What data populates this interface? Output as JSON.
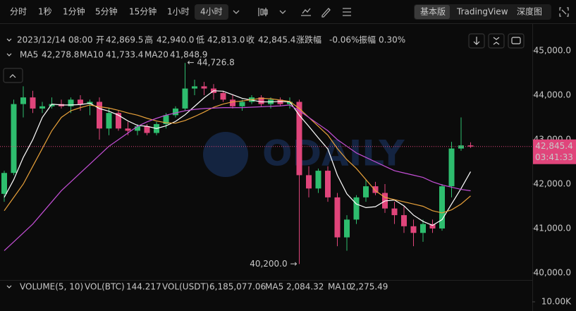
{
  "toolbar": {
    "intervals": [
      {
        "label": "分时"
      },
      {
        "label": "1秒"
      },
      {
        "label": "1分钟"
      },
      {
        "label": "5分钟"
      },
      {
        "label": "15分钟"
      },
      {
        "label": "1小时"
      },
      {
        "label": "4小时",
        "active": true
      }
    ],
    "views": [
      {
        "label": "基本版",
        "active": true
      },
      {
        "label": "TradingView"
      },
      {
        "label": "深度图"
      }
    ]
  },
  "info": {
    "datetime": "2023/12/14 08:00",
    "fields": [
      {
        "label": "开",
        "value": "42,869.5"
      },
      {
        "label": "高",
        "value": "42,940.0"
      },
      {
        "label": "低",
        "value": "42,813.0"
      },
      {
        "label": "收",
        "value": "42,845.4"
      },
      {
        "label": "涨跌幅",
        "value": "-0.06%"
      },
      {
        "label": "振幅",
        "value": "0.30%"
      }
    ]
  },
  "ma_legend": [
    {
      "name": "MA5",
      "value": "42,278.8"
    },
    {
      "name": "MA10",
      "value": "41,733.4"
    },
    {
      "name": "MA20",
      "value": "41,848.9"
    }
  ],
  "watermark": "ODAILY",
  "chart": {
    "type": "candlestick",
    "up_color": "#2ebd6e",
    "down_color": "#e0457b",
    "open": [
      41780,
      42250,
      43800,
      43950,
      43700,
      43750,
      43800,
      43750,
      43900,
      43800,
      43850,
      43250,
      43600,
      43250,
      43200,
      43300,
      43150,
      43350,
      43550,
      43700,
      44150,
      44200,
      44150,
      44050,
      43900,
      43750,
      43850,
      43950,
      43800,
      43900,
      43800,
      43850,
      42200,
      41900,
      42300,
      41700,
      40800,
      41200,
      41700,
      41950,
      41800,
      41450,
      41300,
      41050,
      40900,
      41100,
      41000,
      41950,
      42800,
      42869.5
    ],
    "high": [
      42300,
      43900,
      44200,
      44100,
      43850,
      43950,
      43900,
      43950,
      44000,
      43900,
      43950,
      43700,
      43650,
      43400,
      43350,
      43350,
      43400,
      43600,
      43750,
      44726.8,
      44350,
      44300,
      44250,
      44100,
      44000,
      43900,
      44000,
      44000,
      43950,
      43950,
      43950,
      43900,
      42400,
      42350,
      42400,
      41800,
      41300,
      41750,
      42100,
      42050,
      42000,
      41600,
      41500,
      41200,
      41200,
      41200,
      42000,
      42950,
      43500,
      42940
    ],
    "low": [
      41600,
      42200,
      43500,
      43600,
      43600,
      43700,
      43700,
      43600,
      43650,
      43550,
      43000,
      43100,
      43200,
      43100,
      43100,
      43100,
      43100,
      43250,
      43500,
      43650,
      44000,
      44000,
      43900,
      43850,
      43700,
      43650,
      43800,
      43750,
      43700,
      43750,
      43700,
      40200,
      41700,
      41800,
      41600,
      40600,
      40500,
      41100,
      41600,
      41750,
      41350,
      41100,
      40900,
      40600,
      40700,
      40900,
      40950,
      41700,
      42750,
      42813
    ],
    "close": [
      42250,
      43800,
      43950,
      43700,
      43750,
      43800,
      43750,
      43900,
      43800,
      43850,
      43250,
      43600,
      43250,
      43200,
      43300,
      43150,
      43350,
      43550,
      43700,
      44150,
      44200,
      44150,
      44050,
      43900,
      43750,
      43850,
      43950,
      43800,
      43900,
      43800,
      43850,
      42200,
      41900,
      42300,
      41700,
      40800,
      41200,
      41700,
      41950,
      41800,
      41450,
      41300,
      41050,
      40900,
      41100,
      41000,
      41950,
      42800,
      42870,
      42845.4
    ],
    "ma": [
      {
        "name": "MA5",
        "color": "#ffffff",
        "values": [
          41700,
          42100,
          42600,
          43000,
          43500,
          43800,
          43780,
          43780,
          43790,
          43820,
          43700,
          43640,
          43550,
          43420,
          43320,
          43300,
          43250,
          43310,
          43410,
          43560,
          43750,
          43940,
          44100,
          44090,
          44010,
          43930,
          43890,
          43850,
          43850,
          43860,
          43850,
          43550,
          43300,
          43040,
          42790,
          42200,
          41780,
          41550,
          41470,
          41490,
          41620,
          41640,
          41510,
          41300,
          41160,
          41070,
          41200,
          41550,
          41900,
          42278.8
        ]
      },
      {
        "name": "MA10",
        "color": "#e8a13a",
        "values": [
          41400,
          41700,
          42000,
          42400,
          42800,
          43200,
          43500,
          43650,
          43720,
          43780,
          43740,
          43710,
          43660,
          43600,
          43550,
          43480,
          43420,
          43380,
          43370,
          43430,
          43520,
          43620,
          43730,
          43800,
          43850,
          43870,
          43900,
          43930,
          43920,
          43890,
          43860,
          43700,
          43500,
          43300,
          43100,
          42800,
          42550,
          42350,
          42100,
          41850,
          41700,
          41650,
          41600,
          41550,
          41500,
          41400,
          41350,
          41420,
          41550,
          41733.4
        ]
      },
      {
        "name": "MA20",
        "color": "#c44fd6",
        "values": [
          40500,
          40700,
          40900,
          41100,
          41350,
          41600,
          41850,
          42050,
          42250,
          42450,
          42650,
          42850,
          43000,
          43150,
          43300,
          43400,
          43480,
          43550,
          43600,
          43650,
          43680,
          43700,
          43710,
          43720,
          43720,
          43720,
          43730,
          43740,
          43750,
          43760,
          43780,
          43650,
          43500,
          43350,
          43200,
          43000,
          42850,
          42700,
          42600,
          42500,
          42400,
          42300,
          42250,
          42200,
          42150,
          42050,
          41980,
          41930,
          41880,
          41848.9
        ]
      }
    ],
    "ylim": [
      39841,
      45619
    ],
    "yticks": [
      {
        "value": 40000,
        "label": "40,000.0"
      },
      {
        "value": 41000,
        "label": "41,000.0"
      },
      {
        "value": 42000,
        "label": "42,000.0"
      },
      {
        "value": 43000,
        "label": "43,000.0"
      },
      {
        "value": 44000,
        "label": "44,000.0"
      },
      {
        "value": 45000,
        "label": "45,000.0"
      }
    ],
    "high_label": "← 44,726.8",
    "low_label": "40,200.0 →",
    "last_price": {
      "label": "42,845.4",
      "countdown": "03:41:33"
    }
  },
  "volume": {
    "legend": [
      {
        "text": "VOLUME(5, 10)"
      },
      {
        "text": "VOL(BTC)"
      },
      {
        "text": "144.217"
      },
      {
        "text": "VOL(USDT)"
      },
      {
        "text": "6,185,077.06"
      },
      {
        "text": "MA5"
      },
      {
        "text": "2,084.32"
      },
      {
        "text": "MA10"
      },
      {
        "text": "2,275.49"
      }
    ],
    "tick": {
      "value": 10000,
      "label": "10.00K"
    }
  }
}
